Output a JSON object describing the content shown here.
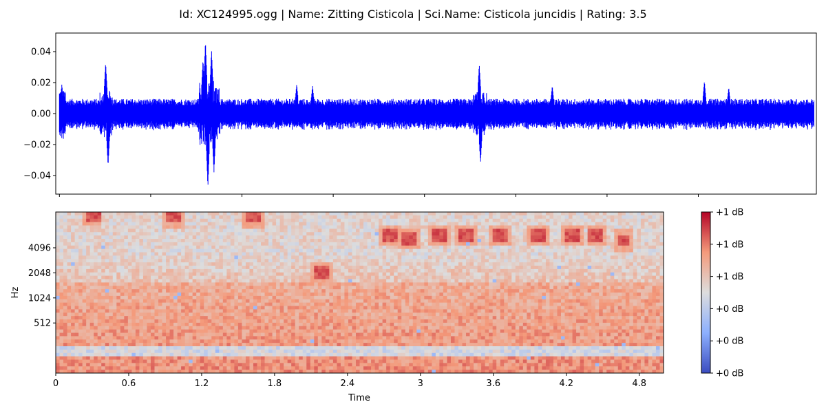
{
  "figure": {
    "title": "Id: XC124995.ogg | Name: Zitting Cisticola | Sci.Name: Cisticola juncidis | Rating: 3.5"
  },
  "chart_data": [
    {
      "type": "line",
      "name": "waveform",
      "duration": 5.0,
      "ylim": [
        -0.052,
        0.052
      ],
      "yticks": [
        {
          "value": 0.04,
          "label": "0.04"
        },
        {
          "value": 0.02,
          "label": "0.02"
        },
        {
          "value": 0.0,
          "label": "0.00"
        },
        {
          "value": -0.02,
          "label": "−0.02"
        },
        {
          "value": -0.04,
          "label": "−0.04"
        }
      ],
      "xticks_values": [
        0,
        0.75,
        1.5,
        2.25,
        3.0,
        3.75,
        4.5,
        5.25
      ],
      "xlim": [
        -0.03,
        6.22
      ],
      "baseline_amplitude": 0.0095,
      "peaks": [
        {
          "x": 0.02,
          "y": 0.019
        },
        {
          "x": 0.38,
          "y": 0.033
        },
        {
          "x": 0.4,
          "y": -0.034
        },
        {
          "x": 1.18,
          "y": 0.035
        },
        {
          "x": 1.2,
          "y": 0.047
        },
        {
          "x": 1.22,
          "y": -0.048
        },
        {
          "x": 1.25,
          "y": 0.041
        },
        {
          "x": 1.27,
          "y": -0.038
        },
        {
          "x": 1.95,
          "y": 0.019
        },
        {
          "x": 2.08,
          "y": 0.018
        },
        {
          "x": 3.45,
          "y": 0.032
        },
        {
          "x": 3.46,
          "y": -0.032
        },
        {
          "x": 4.05,
          "y": 0.018
        },
        {
          "x": 5.3,
          "y": 0.021
        },
        {
          "x": 5.5,
          "y": 0.017
        }
      ],
      "color": "#0000ff",
      "grid": false
    },
    {
      "type": "heatmap",
      "name": "spectrogram",
      "xlabel": "Time",
      "ylabel": "Hz",
      "xlim": [
        0,
        5.0
      ],
      "xticks": [
        "0",
        "0.6",
        "1.2",
        "1.8",
        "2.4",
        "3",
        "3.6",
        "4.2",
        "4.8"
      ],
      "xtick_values": [
        0,
        0.6,
        1.2,
        1.8,
        2.4,
        3.0,
        3.6,
        4.2,
        4.8
      ],
      "yscale": "log2",
      "yticks": [
        "512",
        "1024",
        "2048",
        "4096"
      ],
      "ytick_values": [
        512,
        1024,
        2048,
        4096
      ],
      "ylim": [
        128,
        11025
      ],
      "colormap": "coolwarm",
      "colorbar": {
        "ticks": [
          "+1 dB",
          "+1 dB",
          "+1 dB",
          "+0 dB",
          "+0 dB",
          "+0 dB"
        ]
      },
      "calls": [
        {
          "t": 0.3,
          "f": 10000
        },
        {
          "t": 0.97,
          "f": 9800
        },
        {
          "t": 1.63,
          "f": 9500
        },
        {
          "t": 2.75,
          "f": 5800
        },
        {
          "t": 2.9,
          "f": 5300
        },
        {
          "t": 3.15,
          "f": 5800
        },
        {
          "t": 3.38,
          "f": 5700
        },
        {
          "t": 3.65,
          "f": 5700
        },
        {
          "t": 3.98,
          "f": 5800
        },
        {
          "t": 4.25,
          "f": 5800
        },
        {
          "t": 4.45,
          "f": 5800
        },
        {
          "t": 4.67,
          "f": 5000
        },
        {
          "t": 2.18,
          "f": 2100
        }
      ]
    }
  ]
}
